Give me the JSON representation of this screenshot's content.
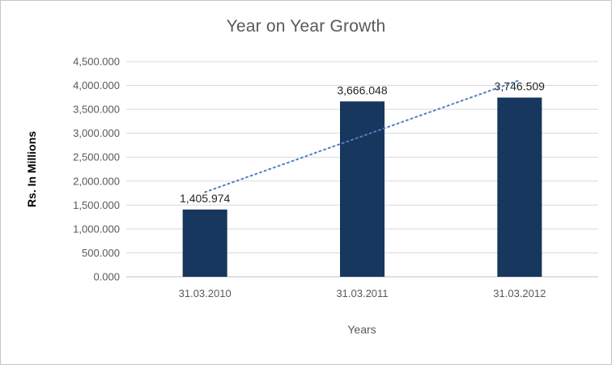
{
  "chart_data": {
    "type": "bar",
    "title": "Year on Year Growth",
    "xlabel": "Years",
    "ylabel": "Rs. In Millions",
    "categories": [
      "31.03.2010",
      "31.03.2011",
      "31.03.2012"
    ],
    "values": [
      1405.974,
      3666.048,
      3746.509
    ],
    "value_labels": [
      "1,405.974",
      "3,666.048",
      "3,746.509"
    ],
    "y_ticks": [
      "0.000",
      "500.000",
      "1,000.000",
      "1,500.000",
      "2,000.000",
      "2,500.000",
      "3,000.000",
      "3,500.000",
      "4,000.000",
      "4,500.000"
    ],
    "ylim": [
      0,
      4500
    ],
    "y_step": 500,
    "grid": true,
    "legend": "none",
    "bar_color": "#17375E",
    "gridline_color": "#d9d9d9",
    "axis_line_color": "#bfbfbf",
    "trendline": {
      "type": "linear",
      "style": "dotted",
      "color": "#4F81BD"
    }
  }
}
